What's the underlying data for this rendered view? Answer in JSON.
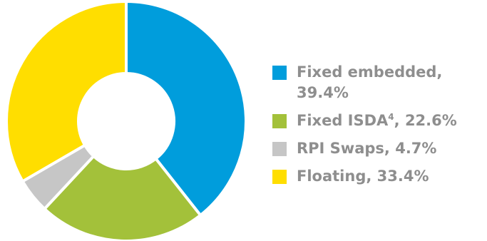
{
  "chart_data": {
    "type": "pie",
    "title": "",
    "legend_position": "right",
    "categories": [
      "Fixed embedded",
      "Fixed ISDA4",
      "RPI Swaps",
      "Floating"
    ],
    "values": [
      39.4,
      22.6,
      4.7,
      33.4
    ],
    "colors": [
      "#009ddc",
      "#a3c13a",
      "#c6c6c6",
      "#ffde00"
    ],
    "legend": [
      {
        "label_main": "Fixed embedded,\n39.4%",
        "label_sup": "",
        "label_rest": "",
        "color": "#009ddc"
      },
      {
        "label_main": "Fixed ISDA",
        "label_sup": "4",
        "label_rest": ", 22.6%",
        "color": "#a3c13a"
      },
      {
        "label_main": "RPI Swaps, 4.7%",
        "label_sup": "",
        "label_rest": "",
        "color": "#c6c6c6"
      },
      {
        "label_main": "Floating, 33.4%",
        "label_sup": "",
        "label_rest": "",
        "color": "#ffde00"
      }
    ]
  }
}
